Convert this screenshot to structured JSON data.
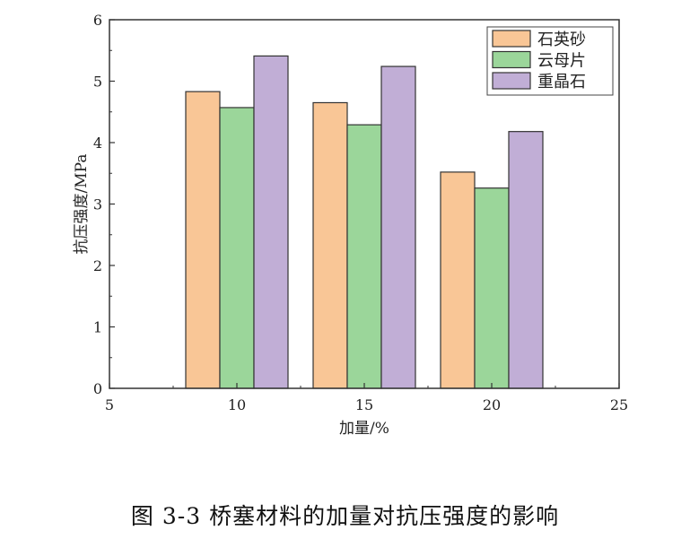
{
  "chart_data": {
    "type": "bar",
    "xlabel": "加量/%",
    "ylabel": "抗压强度/MPa",
    "x": [
      10,
      15,
      20
    ],
    "xlim": [
      5,
      25
    ],
    "ylim": [
      0,
      6
    ],
    "xticks": [
      5,
      10,
      15,
      20,
      25
    ],
    "yticks": [
      0,
      1,
      2,
      3,
      4,
      5,
      6
    ],
    "grid": false,
    "legend_position": "top-right",
    "series": [
      {
        "name": "石英砂",
        "values": [
          4.83,
          4.65,
          3.52
        ],
        "color": "#f9c696"
      },
      {
        "name": "云母片",
        "values": [
          4.57,
          4.29,
          3.26
        ],
        "color": "#9bd69a"
      },
      {
        "name": "重晶石",
        "values": [
          5.41,
          5.24,
          4.18
        ],
        "color": "#c1aed6"
      }
    ]
  },
  "caption": "图 3-3  桥塞材料的加量对抗压强度的影响"
}
